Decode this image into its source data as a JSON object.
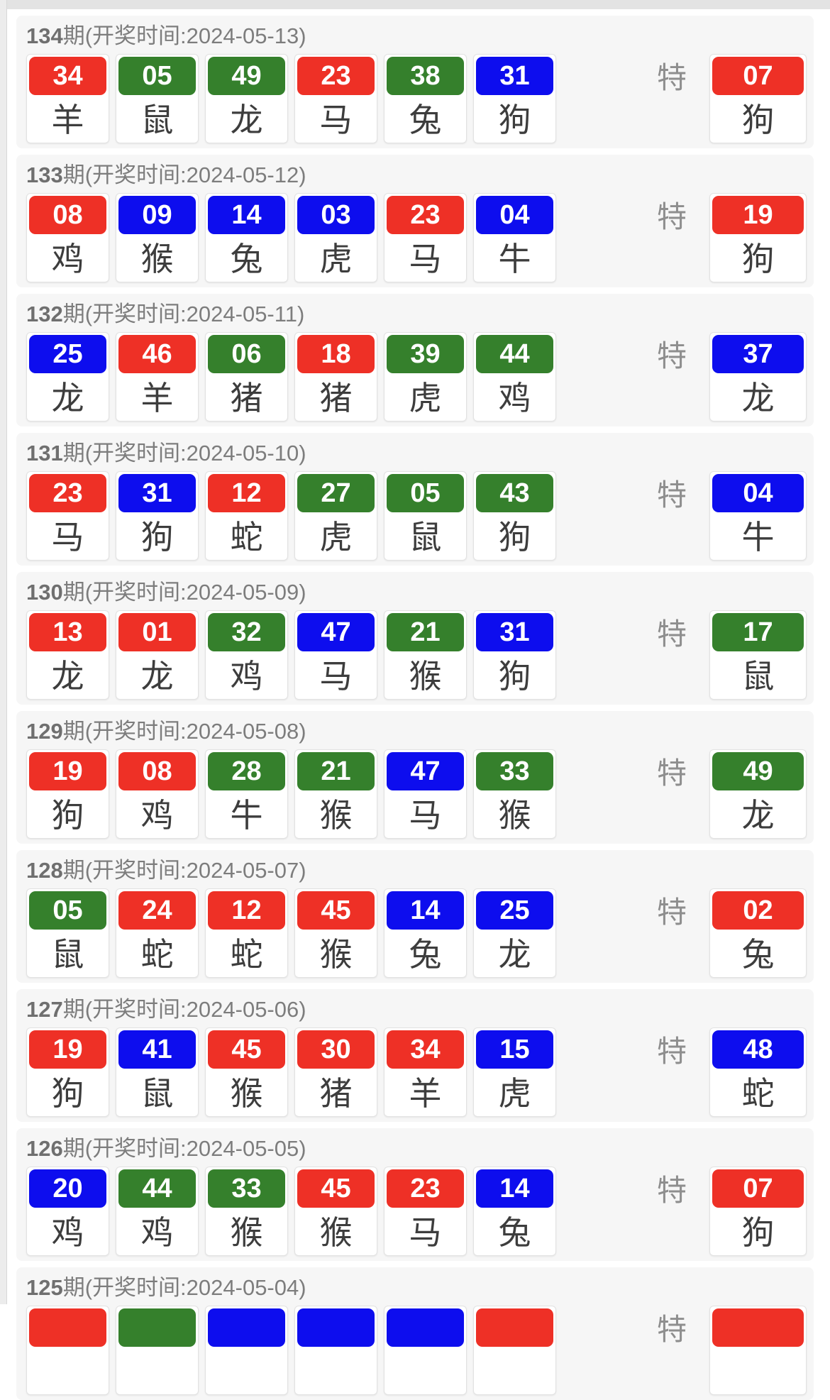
{
  "special_label": "特",
  "header_text": {
    "open_prefix": "期(开奖时间:",
    "close_suffix": ")"
  },
  "colors": {
    "red": "#ee3026",
    "green": "#35802c",
    "blue": "#0d0dee"
  },
  "periods": [
    {
      "issue": "134",
      "header_rest": "期(开奖时间:2024-05-13)",
      "numbers": [
        {
          "num": "34",
          "color": "red",
          "zodiac": "羊"
        },
        {
          "num": "05",
          "color": "green",
          "zodiac": "鼠"
        },
        {
          "num": "49",
          "color": "green",
          "zodiac": "龙"
        },
        {
          "num": "23",
          "color": "red",
          "zodiac": "马"
        },
        {
          "num": "38",
          "color": "green",
          "zodiac": "兔"
        },
        {
          "num": "31",
          "color": "blue",
          "zodiac": "狗"
        }
      ],
      "special": {
        "num": "07",
        "color": "red",
        "zodiac": "狗"
      }
    },
    {
      "issue": "133",
      "header_rest": "期(开奖时间:2024-05-12)",
      "numbers": [
        {
          "num": "08",
          "color": "red",
          "zodiac": "鸡"
        },
        {
          "num": "09",
          "color": "blue",
          "zodiac": "猴"
        },
        {
          "num": "14",
          "color": "blue",
          "zodiac": "兔"
        },
        {
          "num": "03",
          "color": "blue",
          "zodiac": "虎"
        },
        {
          "num": "23",
          "color": "red",
          "zodiac": "马"
        },
        {
          "num": "04",
          "color": "blue",
          "zodiac": "牛"
        }
      ],
      "special": {
        "num": "19",
        "color": "red",
        "zodiac": "狗"
      }
    },
    {
      "issue": "132",
      "header_rest": "期(开奖时间:2024-05-11)",
      "numbers": [
        {
          "num": "25",
          "color": "blue",
          "zodiac": "龙"
        },
        {
          "num": "46",
          "color": "red",
          "zodiac": "羊"
        },
        {
          "num": "06",
          "color": "green",
          "zodiac": "猪"
        },
        {
          "num": "18",
          "color": "red",
          "zodiac": "猪"
        },
        {
          "num": "39",
          "color": "green",
          "zodiac": "虎"
        },
        {
          "num": "44",
          "color": "green",
          "zodiac": "鸡"
        }
      ],
      "special": {
        "num": "37",
        "color": "blue",
        "zodiac": "龙"
      }
    },
    {
      "issue": "131",
      "header_rest": "期(开奖时间:2024-05-10)",
      "numbers": [
        {
          "num": "23",
          "color": "red",
          "zodiac": "马"
        },
        {
          "num": "31",
          "color": "blue",
          "zodiac": "狗"
        },
        {
          "num": "12",
          "color": "red",
          "zodiac": "蛇"
        },
        {
          "num": "27",
          "color": "green",
          "zodiac": "虎"
        },
        {
          "num": "05",
          "color": "green",
          "zodiac": "鼠"
        },
        {
          "num": "43",
          "color": "green",
          "zodiac": "狗"
        }
      ],
      "special": {
        "num": "04",
        "color": "blue",
        "zodiac": "牛"
      }
    },
    {
      "issue": "130",
      "header_rest": "期(开奖时间:2024-05-09)",
      "numbers": [
        {
          "num": "13",
          "color": "red",
          "zodiac": "龙"
        },
        {
          "num": "01",
          "color": "red",
          "zodiac": "龙"
        },
        {
          "num": "32",
          "color": "green",
          "zodiac": "鸡"
        },
        {
          "num": "47",
          "color": "blue",
          "zodiac": "马"
        },
        {
          "num": "21",
          "color": "green",
          "zodiac": "猴"
        },
        {
          "num": "31",
          "color": "blue",
          "zodiac": "狗"
        }
      ],
      "special": {
        "num": "17",
        "color": "green",
        "zodiac": "鼠"
      }
    },
    {
      "issue": "129",
      "header_rest": "期(开奖时间:2024-05-08)",
      "numbers": [
        {
          "num": "19",
          "color": "red",
          "zodiac": "狗"
        },
        {
          "num": "08",
          "color": "red",
          "zodiac": "鸡"
        },
        {
          "num": "28",
          "color": "green",
          "zodiac": "牛"
        },
        {
          "num": "21",
          "color": "green",
          "zodiac": "猴"
        },
        {
          "num": "47",
          "color": "blue",
          "zodiac": "马"
        },
        {
          "num": "33",
          "color": "green",
          "zodiac": "猴"
        }
      ],
      "special": {
        "num": "49",
        "color": "green",
        "zodiac": "龙"
      }
    },
    {
      "issue": "128",
      "header_rest": "期(开奖时间:2024-05-07)",
      "numbers": [
        {
          "num": "05",
          "color": "green",
          "zodiac": "鼠"
        },
        {
          "num": "24",
          "color": "red",
          "zodiac": "蛇"
        },
        {
          "num": "12",
          "color": "red",
          "zodiac": "蛇"
        },
        {
          "num": "45",
          "color": "red",
          "zodiac": "猴"
        },
        {
          "num": "14",
          "color": "blue",
          "zodiac": "兔"
        },
        {
          "num": "25",
          "color": "blue",
          "zodiac": "龙"
        }
      ],
      "special": {
        "num": "02",
        "color": "red",
        "zodiac": "兔"
      }
    },
    {
      "issue": "127",
      "header_rest": "期(开奖时间:2024-05-06)",
      "numbers": [
        {
          "num": "19",
          "color": "red",
          "zodiac": "狗"
        },
        {
          "num": "41",
          "color": "blue",
          "zodiac": "鼠"
        },
        {
          "num": "45",
          "color": "red",
          "zodiac": "猴"
        },
        {
          "num": "30",
          "color": "red",
          "zodiac": "猪"
        },
        {
          "num": "34",
          "color": "red",
          "zodiac": "羊"
        },
        {
          "num": "15",
          "color": "blue",
          "zodiac": "虎"
        }
      ],
      "special": {
        "num": "48",
        "color": "blue",
        "zodiac": "蛇"
      }
    },
    {
      "issue": "126",
      "header_rest": "期(开奖时间:2024-05-05)",
      "numbers": [
        {
          "num": "20",
          "color": "blue",
          "zodiac": "鸡"
        },
        {
          "num": "44",
          "color": "green",
          "zodiac": "鸡"
        },
        {
          "num": "33",
          "color": "green",
          "zodiac": "猴"
        },
        {
          "num": "45",
          "color": "red",
          "zodiac": "猴"
        },
        {
          "num": "23",
          "color": "red",
          "zodiac": "马"
        },
        {
          "num": "14",
          "color": "blue",
          "zodiac": "兔"
        }
      ],
      "special": {
        "num": "07",
        "color": "red",
        "zodiac": "狗"
      }
    },
    {
      "issue": "125",
      "header_rest": "期(开奖时间:2024-05-04)",
      "numbers": [
        {
          "num": "",
          "color": "red",
          "zodiac": ""
        },
        {
          "num": "",
          "color": "green",
          "zodiac": ""
        },
        {
          "num": "",
          "color": "blue",
          "zodiac": ""
        },
        {
          "num": "",
          "color": "blue",
          "zodiac": ""
        },
        {
          "num": "",
          "color": "blue",
          "zodiac": ""
        },
        {
          "num": "",
          "color": "red",
          "zodiac": ""
        }
      ],
      "special": {
        "num": "",
        "color": "red",
        "zodiac": ""
      }
    }
  ]
}
